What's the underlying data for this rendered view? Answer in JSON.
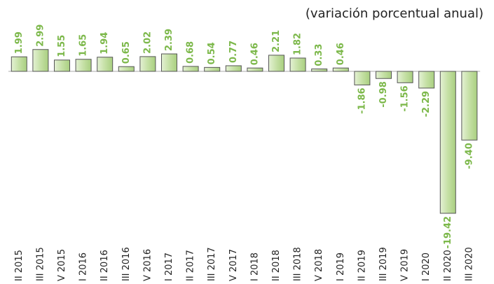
{
  "chart_data": {
    "type": "bar",
    "subtitle": "(variación porcentual anual)",
    "categories": [
      "II 2015",
      "III 2015",
      "V 2015",
      "I 2016",
      "II 2016",
      "III 2016",
      "V 2016",
      "I 2017",
      "II 2017",
      "III 2017",
      "V 2017",
      "I 2018",
      "II 2018",
      "III 2018",
      "V 2018",
      "I 2019",
      "II 2019",
      "III 2019",
      "V 2019",
      "I 2020",
      "II 2020",
      "III 2020"
    ],
    "values": [
      1.99,
      2.99,
      1.55,
      1.65,
      1.94,
      0.65,
      2.02,
      2.39,
      0.68,
      0.54,
      0.77,
      0.46,
      2.21,
      1.82,
      0.33,
      0.46,
      -1.86,
      -0.98,
      -1.56,
      -2.29,
      -19.42,
      -9.4
    ],
    "value_labels": [
      "1.99",
      "2.99",
      "1.55",
      "1.65",
      "1.94",
      "0.65",
      "2.02",
      "2.39",
      "0.68",
      "0.54",
      "0.77",
      "0.46",
      "2.21",
      "1.82",
      "0.33",
      "0.46",
      "-1.86",
      "-0.98",
      "-1.56",
      "-2.29",
      "-19.42",
      "-9.40"
    ],
    "color": "#c5e0a5",
    "label_color": "#7cb84a"
  }
}
